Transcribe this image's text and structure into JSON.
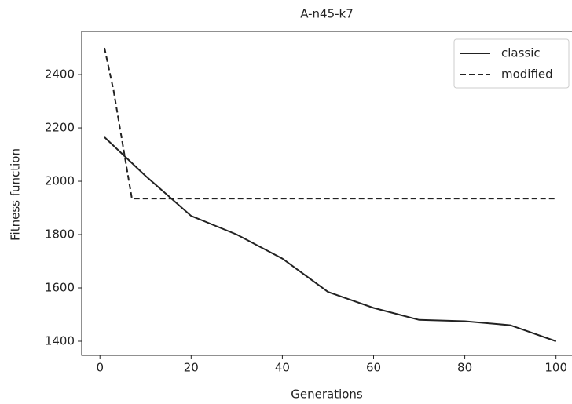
{
  "chart_data": {
    "type": "line",
    "title": "A-n45-k7",
    "x_label": "Generations",
    "y_label": "Fitness function",
    "series": [
      {
        "name": "classic",
        "color": "#222222",
        "dash": "solid",
        "x": [
          1,
          10,
          20,
          30,
          40,
          50,
          60,
          70,
          80,
          90,
          100
        ],
        "values": [
          2165,
          2020,
          1870,
          1800,
          1710,
          1585,
          1525,
          1480,
          1475,
          1460,
          1400
        ]
      },
      {
        "name": "modified",
        "color": "#222222",
        "dash": "dashed",
        "x": [
          1,
          3,
          7,
          100
        ],
        "values": [
          2500,
          2340,
          1935,
          1935
        ]
      }
    ],
    "xlim": [
      -4,
      103.5
    ],
    "ylim": [
      1347,
      2562
    ],
    "xticks": [
      0,
      20,
      40,
      60,
      80,
      100
    ],
    "yticks": [
      1400,
      1600,
      1800,
      2000,
      2200,
      2400
    ],
    "grid": false,
    "legend": "upper right"
  }
}
